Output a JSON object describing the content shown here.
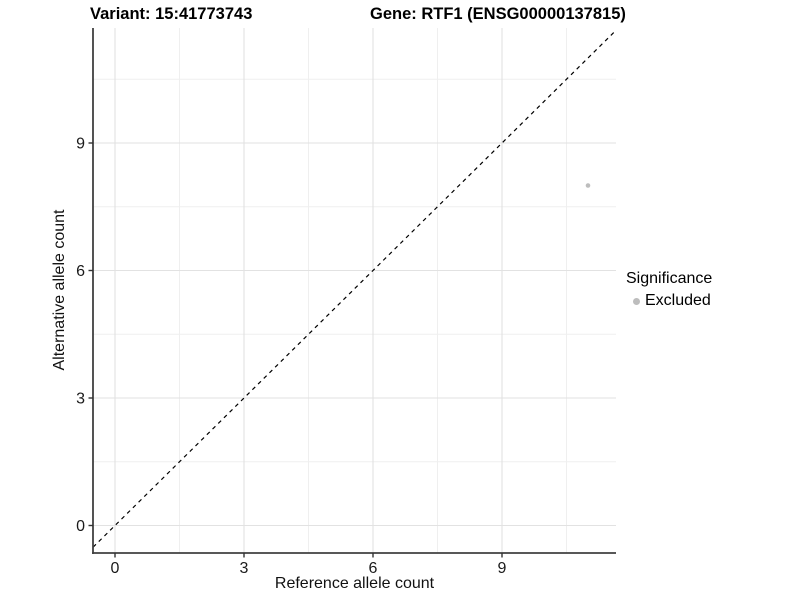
{
  "header": {
    "variant_title": "Variant: 15:41773743",
    "gene_title": "Gene: RTF1 (ENSG00000137815)"
  },
  "colors": {
    "excluded_point": "#bdbdbd",
    "grid_major": "#e2e2e2",
    "grid_minor": "#efefef",
    "axis_line": "#404040",
    "tick_mark": "#333333",
    "tick_label": "#1a1a1a",
    "diagonal_line": "#000000",
    "background": "#ffffff"
  },
  "chart_data": {
    "type": "scatter",
    "title": "",
    "xlabel": "Reference allele count",
    "ylabel": "Alternative allele count",
    "x_ticks": [
      0,
      3,
      6,
      9
    ],
    "y_ticks": [
      0,
      3,
      6,
      9
    ],
    "x_minor_ticks": [
      1.5,
      4.5,
      7.5,
      10.5
    ],
    "y_minor_ticks": [
      1.5,
      4.5,
      7.5,
      10.5
    ],
    "xlim": [
      -0.51,
      11.65
    ],
    "ylim": [
      -0.65,
      11.7
    ],
    "grid": "major+minor",
    "legend_position": "right",
    "series": [
      {
        "name": "Excluded",
        "color": "#bdbdbd",
        "points": [
          {
            "x": 11,
            "y": 8
          }
        ]
      }
    ],
    "reference_line": {
      "type": "identity y=x",
      "style": "dashed",
      "color": "#000000"
    },
    "legend": {
      "title": "Significance",
      "items": [
        {
          "label": "Excluded",
          "color": "#bdbdbd"
        }
      ]
    }
  }
}
